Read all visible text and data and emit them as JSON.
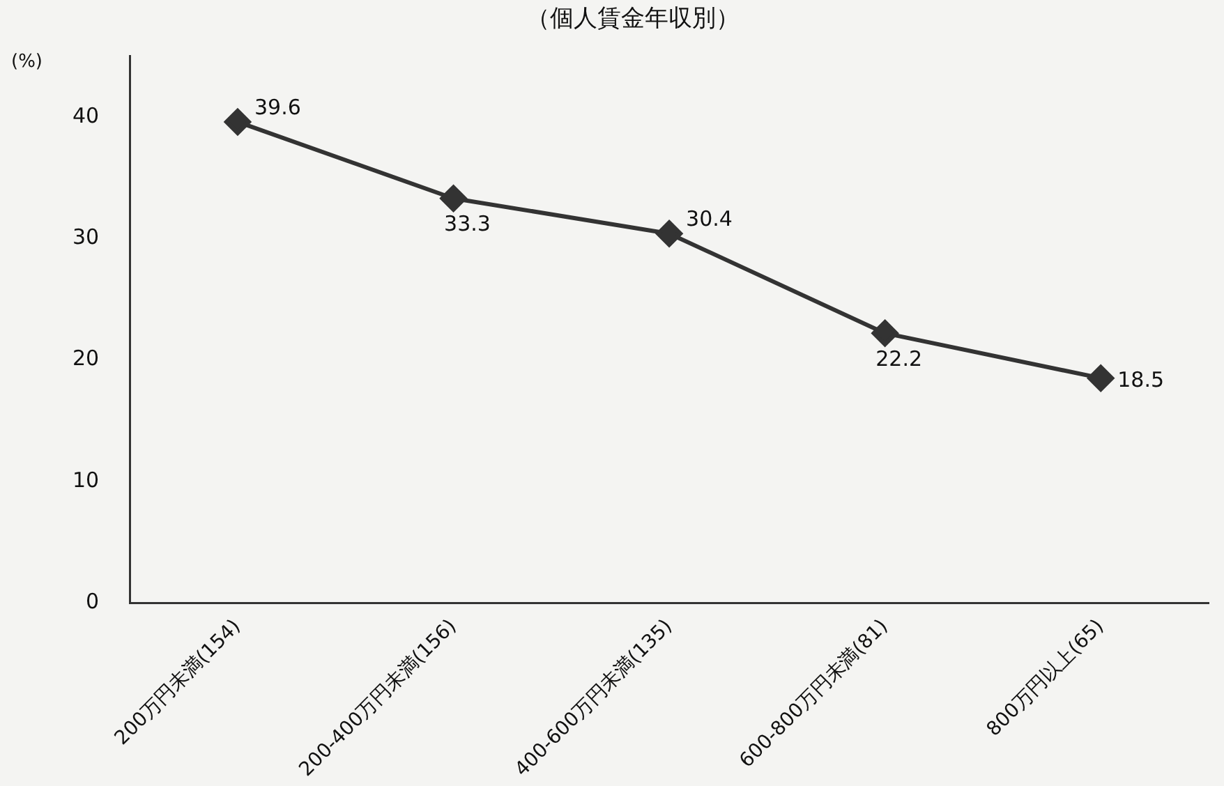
{
  "chart_data": {
    "type": "line",
    "title": "（個人賃金年収別）",
    "ylabel": "(%)",
    "categories": [
      "200万円未満(154)",
      "200-400万円未満(156)",
      "400-600万円未満(135)",
      "600-800万円未満(81)",
      "800万円以上(65)"
    ],
    "series": [
      {
        "color": "#333333",
        "values": [
          39.6,
          33.3,
          30.4,
          22.2,
          18.5
        ]
      }
    ],
    "ylim": [
      0,
      45
    ],
    "yticks": [
      0,
      10,
      20,
      30,
      40
    ],
    "grid": false,
    "legend": false,
    "marker": "diamond",
    "line_style": "solid",
    "data_labels": true
  }
}
